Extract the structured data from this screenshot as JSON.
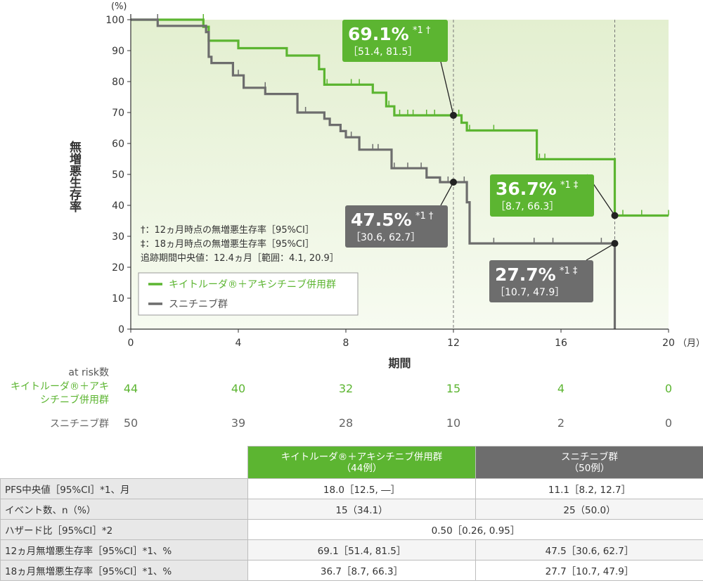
{
  "chart_data": {
    "type": "line",
    "step": true,
    "y_unit": "(%)",
    "x_unit": "（月）",
    "ylabel": "無増悪生存率",
    "xlabel": "期間",
    "xlim": [
      0,
      20
    ],
    "ylim": [
      0,
      100
    ],
    "x_ticks": [
      0,
      4,
      8,
      12,
      16,
      20
    ],
    "y_ticks": [
      0,
      10,
      20,
      30,
      40,
      50,
      60,
      70,
      80,
      90,
      100
    ],
    "reference_lines_x": [
      12,
      18
    ],
    "colors": {
      "green": "#5cb531",
      "gray": "#6d6d6d",
      "plot_bg": "#eef5e2"
    },
    "legend": {
      "position": "bottom-left",
      "notes": [
        "†：12ヵ月時点の無増悪生存率［95%CI］",
        "‡：18ヵ月時点の無増悪生存率［95%CI］",
        "追跡期間中央値：12.4ヵ月［範囲：4.1, 20.9］"
      ]
    },
    "series": [
      {
        "name": "キイトルーダ®＋アキシチニブ併用群",
        "color": "#5cb531",
        "points": [
          [
            0,
            100
          ],
          [
            2.7,
            100
          ],
          [
            2.7,
            97.7
          ],
          [
            2.9,
            97.7
          ],
          [
            2.9,
            93.2
          ],
          [
            4.0,
            93.2
          ],
          [
            4.0,
            90.8
          ],
          [
            5.8,
            90.8
          ],
          [
            5.8,
            88.4
          ],
          [
            7.0,
            88.4
          ],
          [
            7.0,
            84.0
          ],
          [
            7.2,
            84.0
          ],
          [
            7.2,
            79.0
          ],
          [
            9.0,
            79.0
          ],
          [
            9.0,
            76.4
          ],
          [
            9.5,
            76.4
          ],
          [
            9.5,
            72.0
          ],
          [
            9.8,
            72.0
          ],
          [
            9.8,
            69.1
          ],
          [
            12.3,
            69.1
          ],
          [
            12.3,
            66.7
          ],
          [
            12.5,
            66.7
          ],
          [
            12.5,
            64.2
          ],
          [
            15.1,
            64.2
          ],
          [
            15.1,
            54.9
          ],
          [
            18.0,
            54.9
          ],
          [
            18.0,
            36.7
          ],
          [
            20.0,
            36.7
          ]
        ],
        "censor_ticks": [
          [
            1.0,
            100
          ],
          [
            2.7,
            100
          ],
          [
            5.8,
            88.4
          ],
          [
            7.0,
            84.0
          ],
          [
            7.3,
            79.0
          ],
          [
            8.2,
            79.0
          ],
          [
            8.5,
            79.0
          ],
          [
            9.0,
            76.4
          ],
          [
            9.6,
            72.0
          ],
          [
            10.0,
            69.1
          ],
          [
            10.3,
            69.1
          ],
          [
            10.5,
            69.1
          ],
          [
            11.0,
            69.1
          ],
          [
            11.3,
            69.1
          ],
          [
            12.2,
            69.1
          ],
          [
            12.6,
            64.2
          ],
          [
            13.5,
            64.2
          ],
          [
            15.2,
            54.9
          ],
          [
            15.4,
            54.9
          ],
          [
            18.3,
            36.7
          ],
          [
            19.0,
            36.7
          ],
          [
            20.0,
            36.7
          ]
        ],
        "annotations": [
          {
            "x": 12,
            "y": 69.1,
            "value": "69.1%",
            "mark": "*1 †",
            "ci": "［51.4, 81.5］"
          },
          {
            "x": 18,
            "y": 36.7,
            "value": "36.7%",
            "mark": "*1 ‡",
            "ci": "［8.7, 66.3］"
          }
        ],
        "at_risk_label": "キイトルーダ®＋アキシチニブ併用群",
        "at_risk": [
          44,
          40,
          32,
          15,
          4,
          0
        ]
      },
      {
        "name": "スニチニブ群",
        "color": "#6d6d6d",
        "points": [
          [
            0,
            100
          ],
          [
            1.0,
            100
          ],
          [
            1.0,
            98.0
          ],
          [
            2.8,
            98.0
          ],
          [
            2.8,
            96.0
          ],
          [
            2.9,
            96.0
          ],
          [
            2.9,
            88.0
          ],
          [
            3.0,
            88.0
          ],
          [
            3.0,
            86.0
          ],
          [
            3.8,
            86.0
          ],
          [
            3.8,
            82.0
          ],
          [
            4.2,
            82.0
          ],
          [
            4.2,
            78.0
          ],
          [
            5.0,
            78.0
          ],
          [
            5.0,
            76.0
          ],
          [
            6.2,
            76.0
          ],
          [
            6.2,
            70.0
          ],
          [
            7.2,
            70.0
          ],
          [
            7.2,
            68.0
          ],
          [
            7.4,
            68.0
          ],
          [
            7.4,
            66.0
          ],
          [
            7.8,
            66.0
          ],
          [
            7.8,
            64.0
          ],
          [
            8.0,
            64.0
          ],
          [
            8.0,
            62.0
          ],
          [
            8.5,
            62.0
          ],
          [
            8.5,
            58.0
          ],
          [
            9.7,
            58.0
          ],
          [
            9.7,
            52.0
          ],
          [
            11.0,
            52.0
          ],
          [
            11.0,
            49.0
          ],
          [
            11.5,
            49.0
          ],
          [
            11.5,
            47.5
          ],
          [
            12.5,
            47.5
          ],
          [
            12.5,
            41.0
          ],
          [
            12.6,
            41.0
          ],
          [
            12.6,
            27.7
          ],
          [
            18.0,
            27.7
          ],
          [
            18.0,
            0
          ]
        ],
        "censor_ticks": [
          [
            1.0,
            100
          ],
          [
            3.0,
            86.0
          ],
          [
            4.0,
            82.0
          ],
          [
            5.0,
            78.0
          ],
          [
            6.5,
            70.0
          ],
          [
            8.2,
            62.0
          ],
          [
            9.0,
            58.0
          ],
          [
            9.2,
            58.0
          ],
          [
            9.8,
            52.0
          ],
          [
            10.3,
            52.0
          ],
          [
            10.8,
            52.0
          ],
          [
            11.8,
            47.5
          ],
          [
            12.4,
            47.5
          ],
          [
            13.5,
            27.7
          ],
          [
            15.0,
            27.7
          ],
          [
            15.7,
            27.7
          ],
          [
            17.5,
            27.7
          ]
        ],
        "annotations": [
          {
            "x": 12,
            "y": 47.5,
            "value": "47.5%",
            "mark": "*1 †",
            "ci": "［30.6, 62.7］"
          },
          {
            "x": 18,
            "y": 27.7,
            "value": "27.7%",
            "mark": "*1 ‡",
            "ci": "［10.7, 47.9］"
          }
        ],
        "at_risk_label": "スニチニブ群",
        "at_risk": [
          50,
          39,
          28,
          10,
          2,
          0
        ]
      }
    ],
    "at_risk_title": "at risk数"
  },
  "table": {
    "header": {
      "group1_line1": "キイトルーダ®＋アキシチニブ併用群",
      "group1_line2": "（44例）",
      "group2_line1": "スニチニブ群",
      "group2_line2": "（50例）"
    },
    "rows": [
      {
        "label": "PFS中央値［95%CI］*1、月",
        "g1": "18.0［12.5, ―］",
        "g2": "11.1［8.2, 12.7］"
      },
      {
        "label": "イベント数、n（%）",
        "g1": "15（34.1）",
        "g2": "25（50.0）"
      },
      {
        "label": "ハザード比［95%CI］*2",
        "merged": "0.50［0.26, 0.95］"
      },
      {
        "label": "12ヵ月無増悪生存率［95%CI］*1、%",
        "g1": "69.1［51.4, 81.5］",
        "g2": "47.5［30.6, 62.7］"
      },
      {
        "label": "18ヵ月無増悪生存率［95%CI］*1、%",
        "g1": "36.7［8.7, 66.3］",
        "g2": "27.7［10.7, 47.9］"
      }
    ]
  }
}
